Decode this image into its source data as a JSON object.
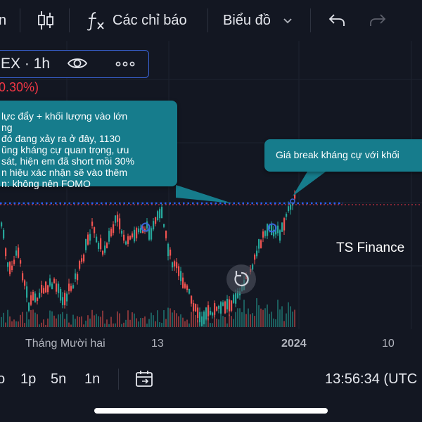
{
  "toolbar": {
    "left_fragment": "n",
    "indicators_label": "Các chỉ báo",
    "chart_type_label": "Biểu đồ"
  },
  "symbol": {
    "label": "EX · 1h",
    "change": "0.30%)"
  },
  "annotations": {
    "left_lines": [
      "lực đẩy + khối lượng vào lớn",
      "ng",
      "đó đang xảy ra ở đây, 1130",
      "ũng kháng cự quan trọng, ưu",
      "sát, hiện em đã short mồi 30%",
      "n hiệu xác nhận sẽ vào thêm",
      "n: không nên FOMO"
    ],
    "right_text": "Giá break kháng cự với khối"
  },
  "watermark": "TS Finance",
  "x_axis": {
    "labels": [
      "Tháng Mười hai",
      "13",
      "2024",
      "10"
    ]
  },
  "bottom_bar": {
    "fragment": "o",
    "ranges": [
      "1p",
      "5n",
      "1n"
    ],
    "clock": "13:56:34 (UTC"
  },
  "colors": {
    "background": "#131722",
    "up": "#26a69a",
    "down": "#ef5350",
    "callout": "#167c8c",
    "resistance_line": "#2962ff",
    "price_line": "#f23645"
  },
  "icons": {
    "candles": "candlestick-icon",
    "indicators": "fx-icon",
    "dropdown": "chevron-down-icon",
    "undo": "undo-icon",
    "redo": "redo-icon",
    "eye": "eye-icon",
    "more": "more-horizontal-icon",
    "replay": "replay-icon",
    "date_range": "calendar-goto-icon"
  }
}
